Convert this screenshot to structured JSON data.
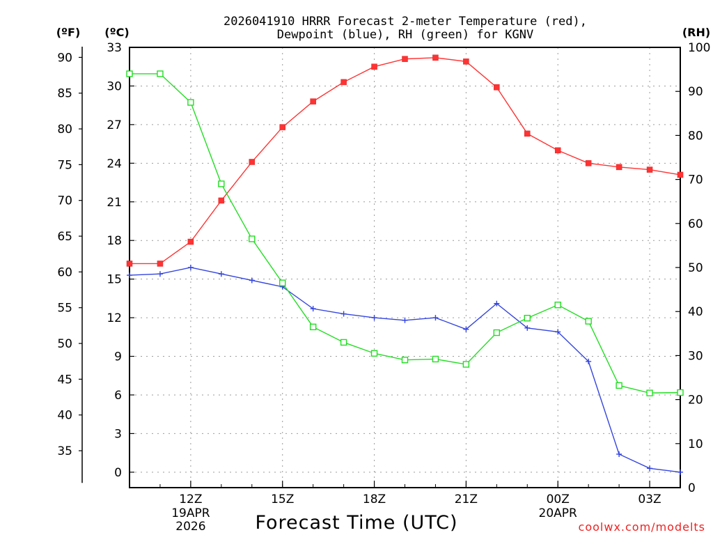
{
  "chart_data": {
    "type": "line",
    "title_line1": "2026041910 HRRR Forecast 2-meter Temperature (red),",
    "title_line2": "Dewpoint (blue), RH (green) for KGNV",
    "xlabel": "Forecast Time (UTC)",
    "watermark": "coolwx.com/modelts",
    "left_axis_f": {
      "label": "(ºF)",
      "ticks": [
        "35",
        "40",
        "45",
        "50",
        "55",
        "60",
        "65",
        "70",
        "75",
        "80",
        "85",
        "90"
      ],
      "tick_values": [
        35,
        40,
        45,
        50,
        55,
        60,
        65,
        70,
        75,
        80,
        85,
        90
      ]
    },
    "left_axis_c": {
      "label": "(ºC)",
      "ticks": [
        "0",
        "3",
        "6",
        "9",
        "12",
        "15",
        "18",
        "21",
        "24",
        "27",
        "30",
        "33"
      ],
      "tick_values": [
        0,
        3,
        6,
        9,
        12,
        15,
        18,
        21,
        24,
        27,
        30,
        33
      ],
      "ylim": [
        -1.2,
        33
      ]
    },
    "right_axis_rh": {
      "label": "(RH)",
      "ticks": [
        "0",
        "10",
        "20",
        "30",
        "40",
        "50",
        "60",
        "70",
        "80",
        "90",
        "100"
      ],
      "tick_values": [
        0,
        10,
        20,
        30,
        40,
        50,
        60,
        70,
        80,
        90,
        100
      ],
      "ylim": [
        0,
        100
      ]
    },
    "x": {
      "hours_utc": [
        10,
        11,
        12,
        13,
        14,
        15,
        16,
        17,
        18,
        19,
        20,
        21,
        22,
        23,
        24,
        25,
        26,
        27,
        28
      ],
      "xlim": [
        10,
        28
      ],
      "ticks": [
        {
          "hour": 12,
          "label": "12Z",
          "sub1": "19APR",
          "sub2": "2026"
        },
        {
          "hour": 15,
          "label": "15Z",
          "sub1": "",
          "sub2": ""
        },
        {
          "hour": 18,
          "label": "18Z",
          "sub1": "",
          "sub2": ""
        },
        {
          "hour": 21,
          "label": "21Z",
          "sub1": "",
          "sub2": ""
        },
        {
          "hour": 24,
          "label": "00Z",
          "sub1": "20APR",
          "sub2": ""
        },
        {
          "hour": 27,
          "label": "03Z",
          "sub1": "",
          "sub2": ""
        }
      ]
    },
    "series": [
      {
        "name": "Temperature",
        "units": "C",
        "color": "#ff3333",
        "marker": "filled-square",
        "values": [
          16.2,
          16.2,
          17.9,
          21.1,
          24.1,
          26.8,
          28.8,
          30.3,
          31.5,
          32.1,
          32.2,
          31.9,
          29.9,
          26.3,
          25.0,
          24.0,
          23.7,
          23.5,
          23.1
        ]
      },
      {
        "name": "Dewpoint",
        "units": "C",
        "color": "#3344dd",
        "marker": "plus",
        "values": [
          15.3,
          15.4,
          15.9,
          15.4,
          14.9,
          14.4,
          12.7,
          12.3,
          12.0,
          11.8,
          12.0,
          11.1,
          13.1,
          11.2,
          10.9,
          8.6,
          1.4,
          0.3,
          0.0
        ]
      },
      {
        "name": "RH",
        "units": "%",
        "color": "#22dd22",
        "marker": "open-square",
        "values": [
          94,
          94,
          87.5,
          69,
          56.5,
          46.5,
          36.5,
          33,
          30.5,
          29,
          29.2,
          28,
          35.2,
          38.5,
          41.5,
          37.8,
          23.2,
          21.5,
          21.6
        ]
      }
    ]
  }
}
